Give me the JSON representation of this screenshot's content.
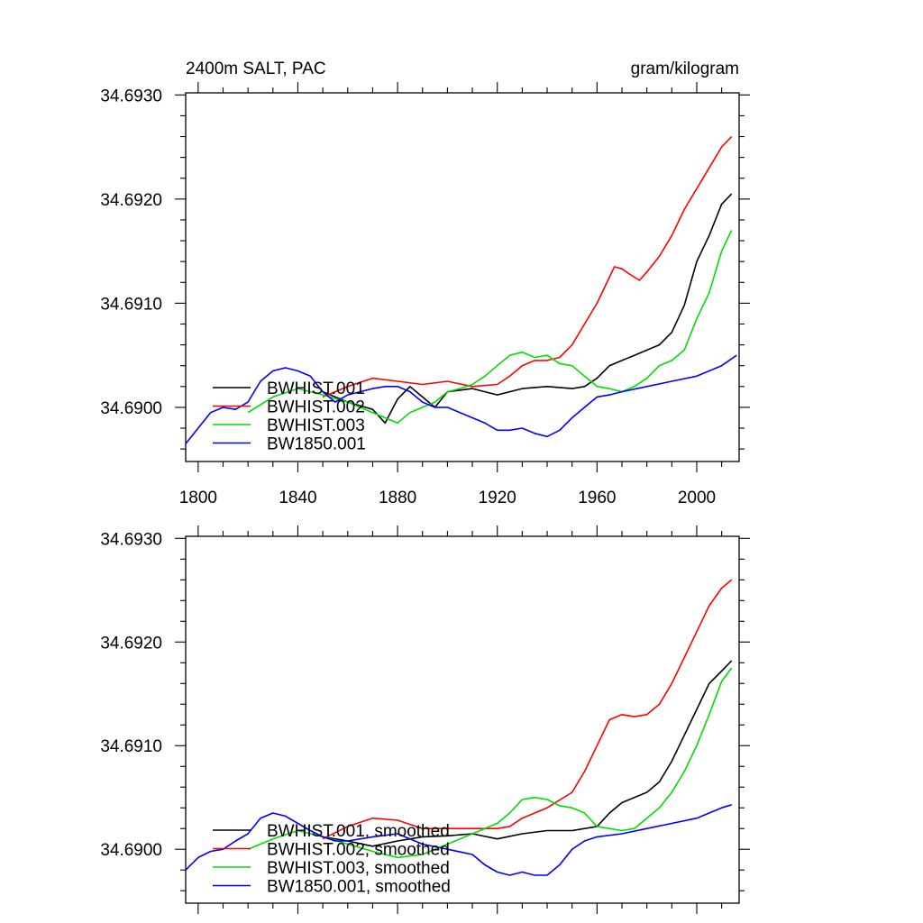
{
  "title_left": "2400m SALT, PAC",
  "title_right": "gram/kilogram",
  "chart_data": [
    {
      "type": "line",
      "title": "2400m SALT, PAC",
      "units": "gram/kilogram",
      "xlim": [
        1795,
        2017
      ],
      "ylim": [
        34.68948,
        34.69302
      ],
      "xticks": [
        1800,
        1840,
        1880,
        1920,
        1960,
        2000
      ],
      "xtick_labels": [
        "1800",
        "1840",
        "1880",
        "1920",
        "1960",
        "2000"
      ],
      "yticks": [
        34.69,
        34.691,
        34.692,
        34.693
      ],
      "ytick_labels": [
        "34.6900",
        "34.6910",
        "34.6920",
        "34.6930"
      ],
      "legend": [
        "BWHIST.001",
        "BWHIST.002",
        "BWHIST.003",
        "BW1850.001"
      ],
      "series": [
        {
          "name": "BWHIST.001",
          "color": "#000000",
          "x": [
            1850,
            1860,
            1870,
            1875,
            1880,
            1885,
            1890,
            1895,
            1900,
            1910,
            1920,
            1930,
            1940,
            1950,
            1955,
            1960,
            1965,
            1970,
            1975,
            1980,
            1985,
            1990,
            1995,
            2000,
            2005,
            2010,
            2014
          ],
          "y": [
            34.69015,
            34.69005,
            34.68998,
            34.68985,
            34.69008,
            34.6902,
            34.6901,
            34.69,
            34.69015,
            34.69018,
            34.69012,
            34.69018,
            34.6902,
            34.69018,
            34.6902,
            34.69028,
            34.6904,
            34.69045,
            34.6905,
            34.69055,
            34.6906,
            34.69072,
            34.69098,
            34.6914,
            34.69165,
            34.69195,
            34.69205
          ]
        },
        {
          "name": "BWHIST.002",
          "color": "#ff0000",
          "x": [
            1850,
            1860,
            1870,
            1880,
            1890,
            1900,
            1910,
            1920,
            1925,
            1930,
            1935,
            1940,
            1945,
            1950,
            1955,
            1960,
            1963,
            1967,
            1970,
            1973,
            1977,
            1980,
            1985,
            1990,
            1995,
            2000,
            2005,
            2010,
            2014
          ],
          "y": [
            34.6901,
            34.6902,
            34.69028,
            34.69025,
            34.69022,
            34.69025,
            34.6902,
            34.69022,
            34.6903,
            34.6904,
            34.69045,
            34.69045,
            34.69048,
            34.6906,
            34.6908,
            34.691,
            34.69115,
            34.69135,
            34.69133,
            34.69128,
            34.69122,
            34.6913,
            34.69145,
            34.69165,
            34.6919,
            34.6921,
            34.6923,
            34.6925,
            34.6926
          ]
        },
        {
          "name": "BWHIST.003",
          "color": "#00dd00",
          "x": [
            1820,
            1830,
            1840,
            1850,
            1860,
            1870,
            1880,
            1885,
            1890,
            1895,
            1900,
            1905,
            1910,
            1915,
            1920,
            1925,
            1930,
            1935,
            1940,
            1945,
            1950,
            1955,
            1960,
            1965,
            1970,
            1975,
            1980,
            1985,
            1990,
            1995,
            2000,
            2005,
            2010,
            2014
          ],
          "y": [
            34.68995,
            34.6901,
            34.69018,
            34.69012,
            34.69005,
            34.68995,
            34.68985,
            34.68995,
            34.69,
            34.69005,
            34.69015,
            34.69018,
            34.69022,
            34.6903,
            34.6904,
            34.6905,
            34.69053,
            34.69048,
            34.6905,
            34.69042,
            34.6904,
            34.6903,
            34.6902,
            34.69018,
            34.69015,
            34.6902,
            34.69028,
            34.6904,
            34.69045,
            34.69055,
            34.69085,
            34.6911,
            34.6915,
            34.6917
          ]
        },
        {
          "name": "BW1850.001",
          "color": "#0000ff",
          "x": [
            1795,
            1800,
            1805,
            1810,
            1815,
            1820,
            1825,
            1830,
            1835,
            1840,
            1845,
            1850,
            1855,
            1860,
            1870,
            1875,
            1880,
            1885,
            1890,
            1895,
            1900,
            1905,
            1910,
            1915,
            1920,
            1925,
            1930,
            1935,
            1940,
            1945,
            1950,
            1955,
            1960,
            1965,
            1970,
            1980,
            1990,
            2000,
            2010,
            2016
          ],
          "y": [
            34.68965,
            34.6898,
            34.68995,
            34.69,
            34.68998,
            34.69005,
            34.69025,
            34.69035,
            34.69038,
            34.69035,
            34.6903,
            34.69015,
            34.69005,
            34.69012,
            34.69018,
            34.6902,
            34.6902,
            34.69015,
            34.69005,
            34.69,
            34.69,
            34.68995,
            34.6899,
            34.68985,
            34.68978,
            34.68978,
            34.6898,
            34.68975,
            34.68972,
            34.68978,
            34.6899,
            34.69,
            34.6901,
            34.69012,
            34.69015,
            34.6902,
            34.69025,
            34.6903,
            34.6904,
            34.6905
          ]
        }
      ]
    },
    {
      "type": "line",
      "title": "",
      "units": "",
      "xlim": [
        1795,
        2017
      ],
      "ylim": [
        34.68948,
        34.69302
      ],
      "xticks": [
        1800,
        1840,
        1880,
        1920,
        1960,
        2000
      ],
      "xtick_labels": [],
      "yticks": [
        34.69,
        34.691,
        34.692,
        34.693
      ],
      "ytick_labels": [
        "34.6900",
        "34.6910",
        "34.6920",
        "34.6930"
      ],
      "legend": [
        "BWHIST.001, smoothed",
        "BWHIST.002, smoothed",
        "BWHIST.003, smoothed",
        "BW1850.001, smoothed"
      ],
      "series": [
        {
          "name": "BWHIST.001, smoothed",
          "color": "#000000",
          "x": [
            1850,
            1860,
            1870,
            1880,
            1890,
            1900,
            1910,
            1920,
            1930,
            1940,
            1950,
            1960,
            1965,
            1970,
            1975,
            1980,
            1985,
            1990,
            1995,
            2000,
            2005,
            2010,
            2014
          ],
          "y": [
            34.69012,
            34.69008,
            34.69003,
            34.69008,
            34.69012,
            34.69013,
            34.69015,
            34.6901,
            34.69015,
            34.69018,
            34.69018,
            34.69022,
            34.69035,
            34.69045,
            34.6905,
            34.69055,
            34.69065,
            34.69085,
            34.6911,
            34.69135,
            34.6916,
            34.69172,
            34.69182
          ]
        },
        {
          "name": "BWHIST.002, smoothed",
          "color": "#ff0000",
          "x": [
            1850,
            1860,
            1870,
            1880,
            1890,
            1900,
            1910,
            1920,
            1925,
            1930,
            1940,
            1950,
            1955,
            1960,
            1965,
            1970,
            1975,
            1980,
            1985,
            1990,
            1995,
            2000,
            2005,
            2010,
            2014
          ],
          "y": [
            34.6901,
            34.69022,
            34.6903,
            34.69028,
            34.6902,
            34.6902,
            34.6902,
            34.6902,
            34.69022,
            34.6903,
            34.6904,
            34.69055,
            34.69075,
            34.691,
            34.69125,
            34.6913,
            34.69128,
            34.6913,
            34.6914,
            34.6916,
            34.69185,
            34.6921,
            34.69235,
            34.69252,
            34.6926
          ]
        },
        {
          "name": "BWHIST.003, smoothed",
          "color": "#00dd00",
          "x": [
            1820,
            1830,
            1840,
            1850,
            1860,
            1870,
            1880,
            1890,
            1900,
            1910,
            1920,
            1925,
            1930,
            1935,
            1940,
            1945,
            1950,
            1955,
            1960,
            1965,
            1970,
            1975,
            1980,
            1985,
            1990,
            1995,
            2000,
            2005,
            2010,
            2014
          ],
          "y": [
            34.69,
            34.6901,
            34.69018,
            34.69012,
            34.69005,
            34.68998,
            34.68992,
            34.68995,
            34.69005,
            34.69015,
            34.69025,
            34.69035,
            34.69048,
            34.6905,
            34.69048,
            34.69042,
            34.6904,
            34.69035,
            34.69022,
            34.6902,
            34.69018,
            34.6902,
            34.6903,
            34.6904,
            34.69055,
            34.69075,
            34.691,
            34.6913,
            34.69162,
            34.69175
          ]
        },
        {
          "name": "BW1850.001, smoothed",
          "color": "#0000ff",
          "x": [
            1795,
            1800,
            1805,
            1810,
            1815,
            1820,
            1825,
            1830,
            1835,
            1840,
            1845,
            1850,
            1855,
            1860,
            1870,
            1880,
            1890,
            1900,
            1910,
            1915,
            1920,
            1925,
            1930,
            1935,
            1940,
            1945,
            1950,
            1955,
            1960,
            1970,
            1980,
            1990,
            2000,
            2005,
            2010,
            2014
          ],
          "y": [
            34.6898,
            34.68992,
            34.68998,
            34.69,
            34.69008,
            34.69015,
            34.6903,
            34.69035,
            34.69032,
            34.69025,
            34.69018,
            34.69012,
            34.69008,
            34.69008,
            34.69012,
            34.69015,
            34.69005,
            34.69,
            34.68995,
            34.68985,
            34.68978,
            34.68975,
            34.68978,
            34.68975,
            34.68975,
            34.68985,
            34.69,
            34.69008,
            34.69012,
            34.69015,
            34.6902,
            34.69025,
            34.6903,
            34.69035,
            34.6904,
            34.69043
          ]
        }
      ]
    }
  ]
}
